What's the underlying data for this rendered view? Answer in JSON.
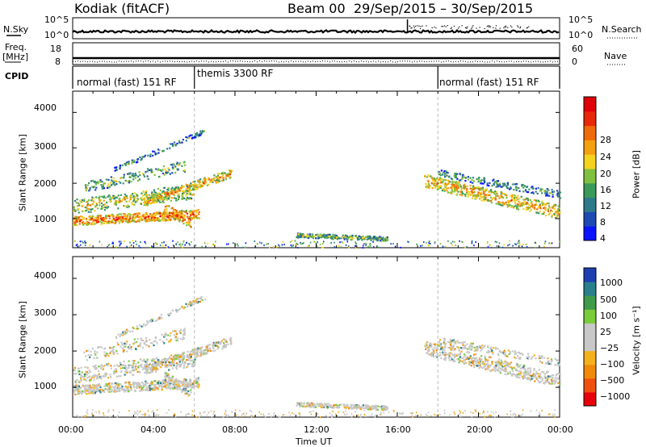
{
  "header": {
    "title": "Kodiak (fitACF)",
    "beam": "Beam 00",
    "date_range": "29/Sep/2015 – 30/Sep/2015"
  },
  "side_labels": {
    "nsky": "N.Sky",
    "nsearch": "N.Search",
    "freq": "Freq.",
    "freq_unit": "[MHz]",
    "nave": "Nave",
    "cpid": "CPID"
  },
  "cpid_segments": [
    {
      "label": "normal (fast) 151 RF",
      "start_hour": 0,
      "end_hour": 6
    },
    {
      "label": "themis 3300 RF",
      "start_hour": 6,
      "end_hour": 18
    },
    {
      "label": "normal (fast) 151 RF",
      "start_hour": 18,
      "end_hour": 24
    }
  ],
  "chart_data": [
    {
      "type": "line",
      "name": "noise",
      "left_ticks": [
        "10^5",
        "10^0"
      ],
      "right_ticks": [
        "10^5",
        "10^0"
      ],
      "xlim": [
        0,
        24
      ]
    },
    {
      "type": "line",
      "name": "frequency-nave",
      "left_ticks": [
        "18",
        "8"
      ],
      "right_ticks": [
        "60",
        "0"
      ],
      "xlim": [
        0,
        24
      ]
    },
    {
      "type": "heatmap",
      "name": "power",
      "xlim": [
        0,
        24
      ],
      "ylim": [
        180,
        4600
      ],
      "ylabel": "Slant Range [km]",
      "yticks": [
        1000,
        2000,
        3000,
        4000
      ],
      "colorbar_label": "Power [dB]",
      "colorbar_ticks": [
        "4",
        "8",
        "12",
        "16",
        "20",
        "24",
        "28"
      ],
      "colorbar_colors": [
        "#0a14ff",
        "#1e4ab4",
        "#2f7a8a",
        "#3a9a5a",
        "#7fc040",
        "#f5d21e",
        "#f5a00f",
        "#ef6a0a",
        "#e8280a",
        "#e0000a"
      ]
    },
    {
      "type": "heatmap",
      "name": "velocity",
      "xlim": [
        0,
        24
      ],
      "ylim": [
        180,
        4600
      ],
      "ylabel": "Slant Range [km]",
      "yticks": [
        1000,
        2000,
        3000,
        4000
      ],
      "xlabel": "Time UT",
      "xticks": [
        "00:00",
        "04:00",
        "08:00",
        "12:00",
        "16:00",
        "20:00",
        "00:00"
      ],
      "colorbar_label": "Velocity [m s⁻¹]",
      "colorbar_ticks": [
        "1000",
        "500",
        "100",
        "25",
        "−25",
        "−100",
        "−500",
        "−1000"
      ],
      "colorbar_colors": [
        "#1f3fb0",
        "#2a7f8a",
        "#3f9a4a",
        "#7acc3a",
        "#c8c8c8",
        "#c8c8c8",
        "#f5b01e",
        "#f08a0a",
        "#ef5010",
        "#e8000a"
      ]
    }
  ]
}
